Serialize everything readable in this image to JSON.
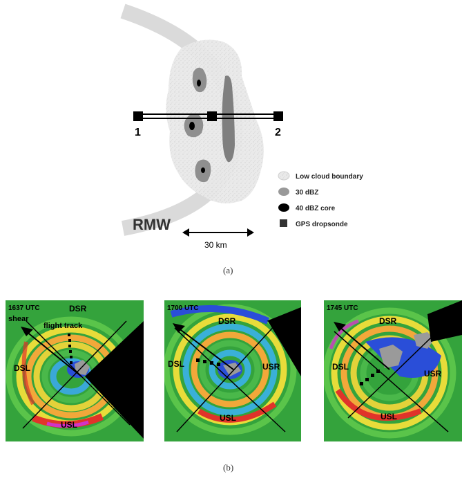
{
  "top_diagram": {
    "point_1": "1",
    "point_2": "2",
    "rmw_label": "RMW",
    "scale_label": "30 km",
    "legend": [
      {
        "label": "Low cloud boundary",
        "icon": "low-cloud-swatch"
      },
      {
        "label": "30 dBZ",
        "icon": "30dbz-swatch"
      },
      {
        "label": "40 dBZ core",
        "icon": "40dbz-swatch"
      },
      {
        "label": "GPS dropsonde",
        "icon": "dropsonde-square"
      }
    ],
    "caption": "(a)"
  },
  "panels": [
    {
      "time": "1637 UTC",
      "shear": "shear",
      "flight": "flight track",
      "dsr": "DSR",
      "dsl": "DSL",
      "usl": "USL",
      "usr": ""
    },
    {
      "time": "1700 UTC",
      "shear": "",
      "flight": "",
      "dsr": "DSR",
      "dsl": "DSL",
      "usl": "USL",
      "usr": "USR"
    },
    {
      "time": "1745 UTC",
      "shear": "",
      "flight": "",
      "dsr": "DSR",
      "dsl": "DSL",
      "usl": "USL",
      "usr": "USR"
    }
  ],
  "bottom_caption": "(b)",
  "colors": {
    "bg": "#2e9a3a",
    "green": "#4ec24a",
    "yellow": "#f2e23a",
    "orange": "#f0a23a",
    "red": "#e0332a",
    "magenta": "#d033c8",
    "blue": "#2a4ed8",
    "cyan": "#3ab0d8",
    "gray": "#9a9a9a",
    "black": "#000000"
  }
}
